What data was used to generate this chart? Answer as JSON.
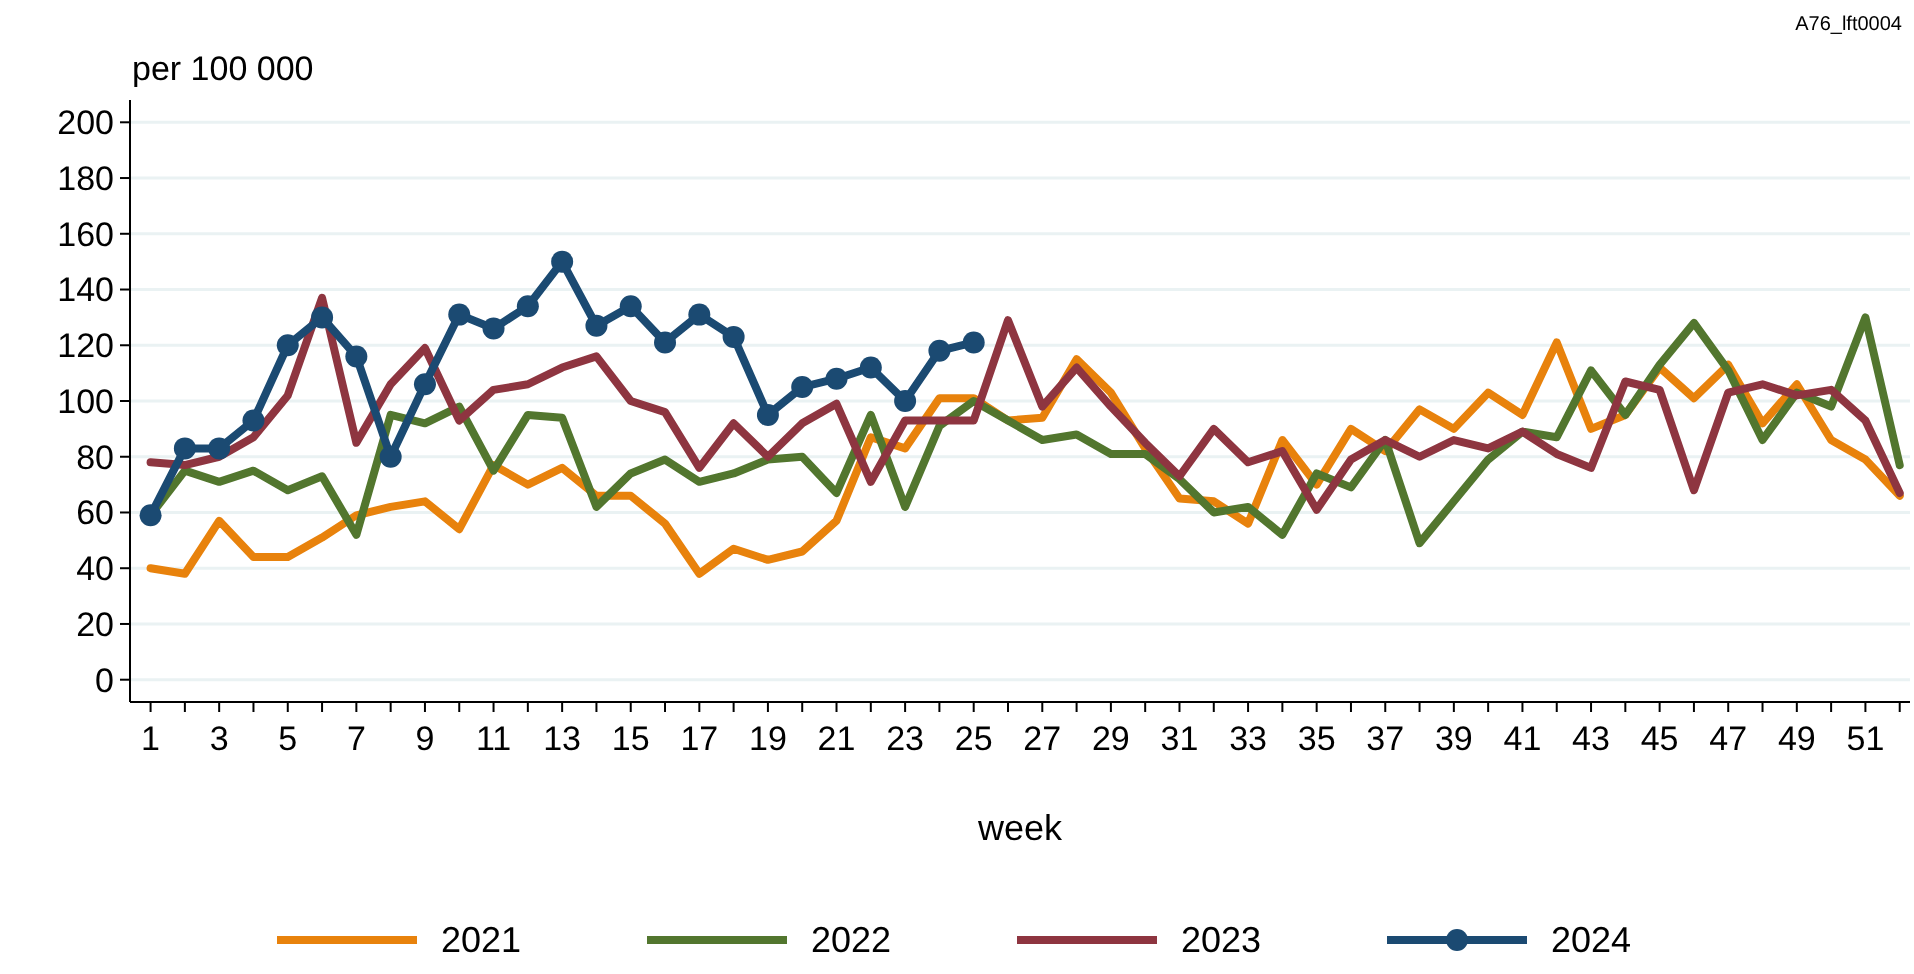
{
  "chart_data": {
    "type": "line",
    "xlabel": "week",
    "ylabel": "per 100 000",
    "annotations": [
      "A76_lft0004"
    ],
    "x": [
      1,
      2,
      3,
      4,
      5,
      6,
      7,
      8,
      9,
      10,
      11,
      12,
      13,
      14,
      15,
      16,
      17,
      18,
      19,
      20,
      21,
      22,
      23,
      24,
      25,
      26,
      27,
      28,
      29,
      30,
      31,
      32,
      33,
      34,
      35,
      36,
      37,
      38,
      39,
      40,
      41,
      42,
      43,
      44,
      45,
      46,
      47,
      48,
      49,
      50,
      51,
      52
    ],
    "xlim": [
      0.4,
      52.3
    ],
    "xticks": [
      1,
      {
        "value": 2,
        "label": null
      },
      3,
      {
        "value": 4,
        "label": null
      },
      5,
      {
        "value": 6,
        "label": null
      },
      7,
      {
        "value": 8,
        "label": null
      },
      9,
      {
        "value": 10,
        "label": null
      },
      11,
      {
        "value": 12,
        "label": null
      },
      13,
      {
        "value": 14,
        "label": null
      },
      15,
      {
        "value": 16,
        "label": null
      },
      17,
      {
        "value": 18,
        "label": null
      },
      19,
      {
        "value": 20,
        "label": null
      },
      21,
      {
        "value": 22,
        "label": null
      },
      23,
      {
        "value": 24,
        "label": null
      },
      25,
      {
        "value": 26,
        "label": null
      },
      27,
      {
        "value": 28,
        "label": null
      },
      29,
      {
        "value": 30,
        "label": null
      },
      31,
      {
        "value": 32,
        "label": null
      },
      33,
      {
        "value": 34,
        "label": null
      },
      35,
      {
        "value": 36,
        "label": null
      },
      37,
      {
        "value": 38,
        "label": null
      },
      39,
      {
        "value": 40,
        "label": null
      },
      41,
      {
        "value": 42,
        "label": null
      },
      43,
      {
        "value": 44,
        "label": null
      },
      45,
      {
        "value": 46,
        "label": null
      },
      47,
      {
        "value": 48,
        "label": null
      },
      49,
      {
        "value": 50,
        "label": null
      },
      51,
      {
        "value": 52,
        "label": null
      }
    ],
    "ylim": [
      -8,
      208
    ],
    "yticks": [
      0,
      20,
      40,
      60,
      80,
      100,
      120,
      140,
      160,
      180,
      200
    ],
    "grid": "y",
    "legend": "bottom",
    "line_style": "solid",
    "series": [
      {
        "name": "2021",
        "color": "#e8820c",
        "marker": "none",
        "values": [
          40,
          38,
          57,
          44,
          44,
          51,
          59,
          62,
          64,
          54,
          77,
          70,
          76,
          66,
          66,
          56,
          38,
          47,
          43,
          46,
          57,
          87,
          83,
          101,
          101,
          93,
          94,
          115,
          103,
          83,
          65,
          64,
          56,
          86,
          70,
          90,
          82,
          97,
          90,
          103,
          95,
          121,
          90,
          95,
          112,
          101,
          113,
          92,
          106,
          86,
          79,
          66
        ]
      },
      {
        "name": "2022",
        "color": "#52762e",
        "marker": "none",
        "values": [
          59,
          75,
          71,
          75,
          68,
          73,
          52,
          95,
          92,
          98,
          75,
          95,
          94,
          62,
          74,
          79,
          71,
          74,
          79,
          80,
          67,
          95,
          62,
          91,
          100,
          93,
          86,
          88,
          81,
          81,
          72,
          60,
          62,
          52,
          74,
          69,
          86,
          49,
          64,
          79,
          89,
          87,
          111,
          95,
          113,
          128,
          111,
          86,
          103,
          98,
          130,
          77
        ]
      },
      {
        "name": "2023",
        "color": "#8e3540",
        "marker": "none",
        "values": [
          78,
          77,
          80,
          87,
          102,
          137,
          85,
          106,
          119,
          93,
          104,
          106,
          112,
          116,
          100,
          96,
          76,
          92,
          80,
          92,
          99,
          71,
          93,
          93,
          93,
          129,
          98,
          112,
          98,
          85,
          73,
          90,
          78,
          82,
          61,
          79,
          86,
          80,
          86,
          83,
          89,
          81,
          76,
          107,
          104,
          68,
          103,
          106,
          102,
          104,
          93,
          67
        ]
      },
      {
        "name": "2024",
        "color": "#1b4a72",
        "marker": "circle",
        "x": [
          1,
          2,
          3,
          4,
          5,
          6,
          7,
          8,
          9,
          10,
          11,
          12,
          13,
          14,
          15,
          16,
          17,
          18,
          19,
          20,
          21,
          22,
          23,
          24,
          25
        ],
        "values": [
          59,
          83,
          83,
          93,
          120,
          130,
          116,
          80,
          106,
          131,
          126,
          134,
          150,
          127,
          134,
          121,
          131,
          123,
          95,
          105,
          108,
          112,
          100,
          118,
          121
        ]
      }
    ]
  }
}
